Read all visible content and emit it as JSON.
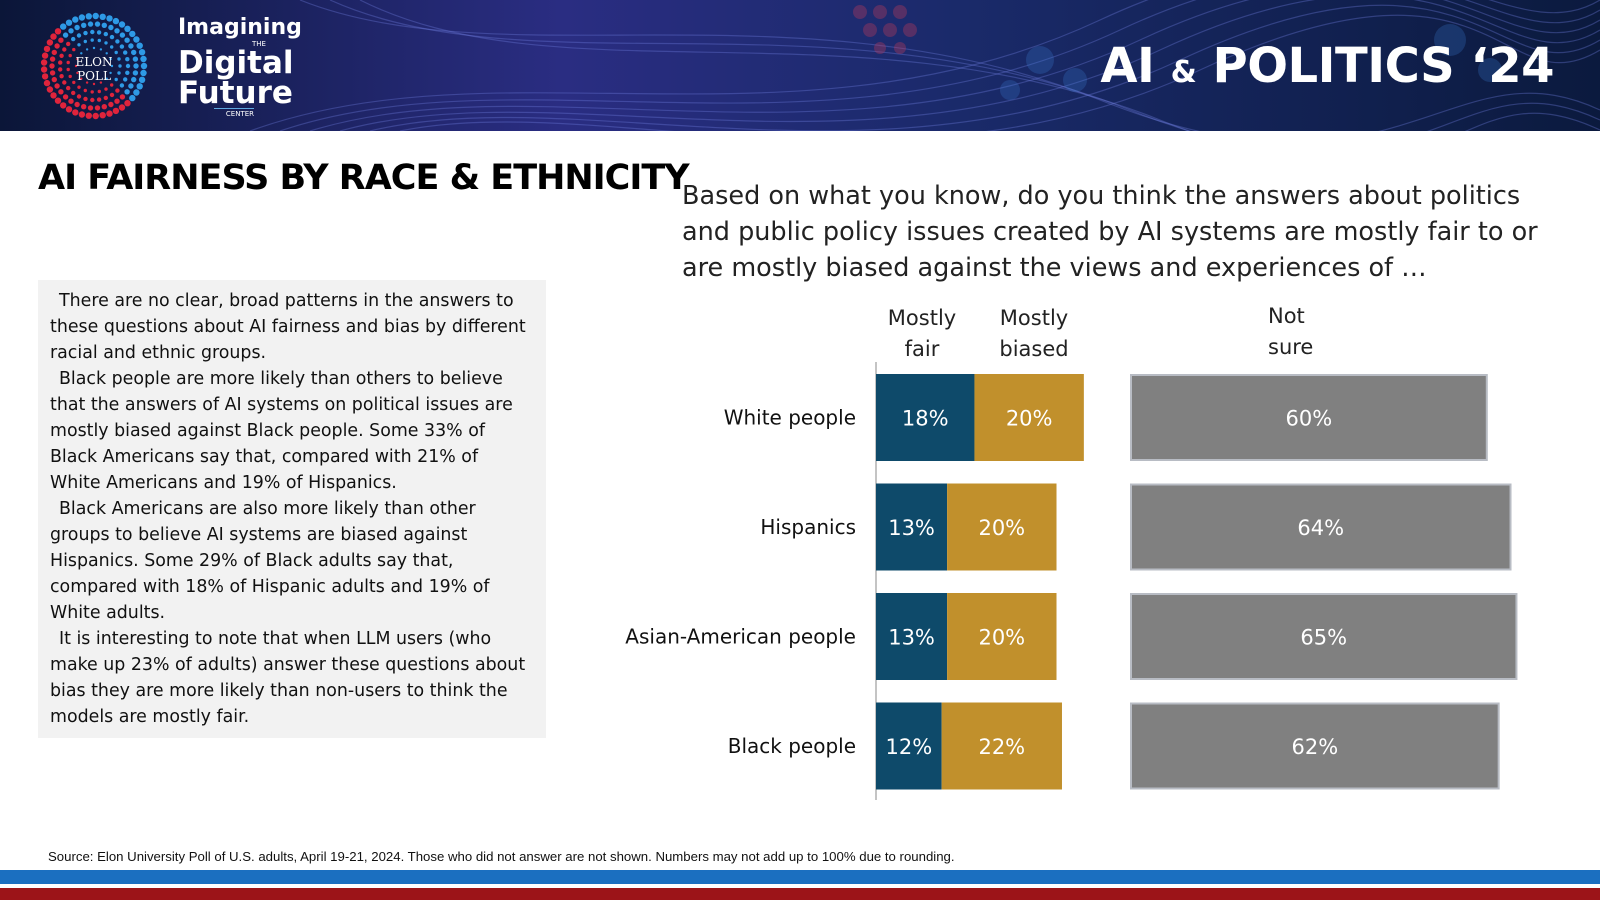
{
  "header": {
    "logo_poll_line1": "ELON",
    "logo_poll_line2": "POLL",
    "logo_line1": "Imagining",
    "logo_the": "THE",
    "logo_line2": "Digital",
    "logo_line3": "Future",
    "logo_center": "CENTER",
    "headline_part1": "AI",
    "headline_amp": "&",
    "headline_part2": "POLITICS ‘24",
    "colors": {
      "banner": "#0d1b45",
      "accent_blue": "#1b6fc0",
      "accent_red": "#9c1418"
    }
  },
  "page": {
    "title": "AI FAIRNESS BY RACE & ETHNICITY",
    "question": "Based on what you know, do you think the answers about politics and public policy issues created by AI systems are mostly fair to or are mostly biased against the views and experiences of …",
    "paragraphs": [
      "There are no clear, broad patterns in the answers to these questions about AI fairness and bias by different racial and ethnic groups.",
      "Black people are more likely than others to believe that the answers of AI systems on political issues are mostly biased against Black people. Some 33% of Black Americans say that, compared with 21% of White Americans and 19% of Hispanics.",
      "Black Americans are also more likely than other groups to believe AI systems are biased against Hispanics. Some 29% of Black adults say that, compared with 18% of Hispanic adults and 19% of White adults.",
      "It is interesting to note that when LLM users (who make up 23% of adults) answer these questions about bias they are more likely than non-users to think the models are mostly fair."
    ],
    "source": "Source: Elon University Poll of U.S. adults, April 19-21, 2024. Those who did not answer are not shown. Numbers may not add up to 100% due to rounding."
  },
  "chart_data": {
    "type": "bar",
    "orientation": "horizontal",
    "stacked": true,
    "categories": [
      "White people",
      "Hispanics",
      "Asian-American people",
      "Black people"
    ],
    "series": [
      {
        "name": "Mostly fair",
        "header_line1": "Mostly",
        "header_line2": "fair",
        "color": "#0e4a6a",
        "values": [
          18,
          13,
          13,
          12
        ],
        "labels": [
          "18%",
          "13%",
          "13%",
          "12%"
        ]
      },
      {
        "name": "Mostly biased",
        "header_line1": "Mostly",
        "header_line2": "biased",
        "color": "#c1902c",
        "values": [
          20,
          20,
          20,
          22
        ],
        "labels": [
          "20%",
          "20%",
          "20%",
          "22%"
        ]
      },
      {
        "name": "Not sure",
        "header_line1": "Not",
        "header_line2": "sure",
        "color": "#808080",
        "values": [
          60,
          64,
          65,
          62
        ],
        "labels": [
          "60%",
          "64%",
          "65%",
          "62%"
        ]
      }
    ],
    "title": "AI FAIRNESS BY RACE & ETHNICITY",
    "xlabel": "",
    "ylabel": "",
    "unit": "%"
  }
}
